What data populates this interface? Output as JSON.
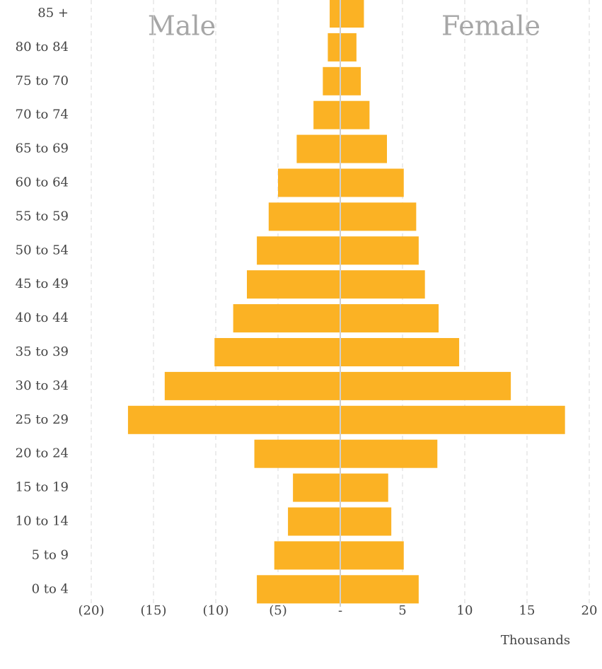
{
  "chart_data": {
    "type": "pyramid",
    "categories": [
      "85 +",
      "80 to 84",
      "75 to 70",
      "70 to 74",
      "65 to 69",
      "60 to 64",
      "55 to 59",
      "50 to 54",
      "45 to 49",
      "40 to 44",
      "35 to 39",
      "30 to 34",
      "25 to 29",
      "20 to 24",
      "15 to 19",
      "10 to 14",
      "5 to 9",
      "0 to 4"
    ],
    "series": [
      {
        "name": "Male",
        "color": "#fbb224",
        "values": [
          -0.85,
          -1.0,
          -1.4,
          -2.15,
          -3.5,
          -5.0,
          -5.75,
          -6.7,
          -7.5,
          -8.6,
          -10.1,
          -14.1,
          -17.05,
          -6.9,
          -3.8,
          -4.2,
          -5.3,
          -6.7
        ]
      },
      {
        "name": "Female",
        "color": "#fbb224",
        "values": [
          1.9,
          1.3,
          1.65,
          2.35,
          3.75,
          5.1,
          6.1,
          6.3,
          6.8,
          7.9,
          9.55,
          13.7,
          18.05,
          7.8,
          3.85,
          4.1,
          5.1,
          6.3
        ]
      }
    ],
    "xlabel": "Thousands",
    "xlim": [
      -20,
      20
    ],
    "xticks": [
      {
        "value": -20,
        "label": "(20)"
      },
      {
        "value": -15,
        "label": "(15)"
      },
      {
        "value": -10,
        "label": "(10)"
      },
      {
        "value": -5,
        "label": "(5)"
      },
      {
        "value": 0,
        "label": "-"
      },
      5,
      10,
      15,
      20
    ],
    "grid": true
  }
}
